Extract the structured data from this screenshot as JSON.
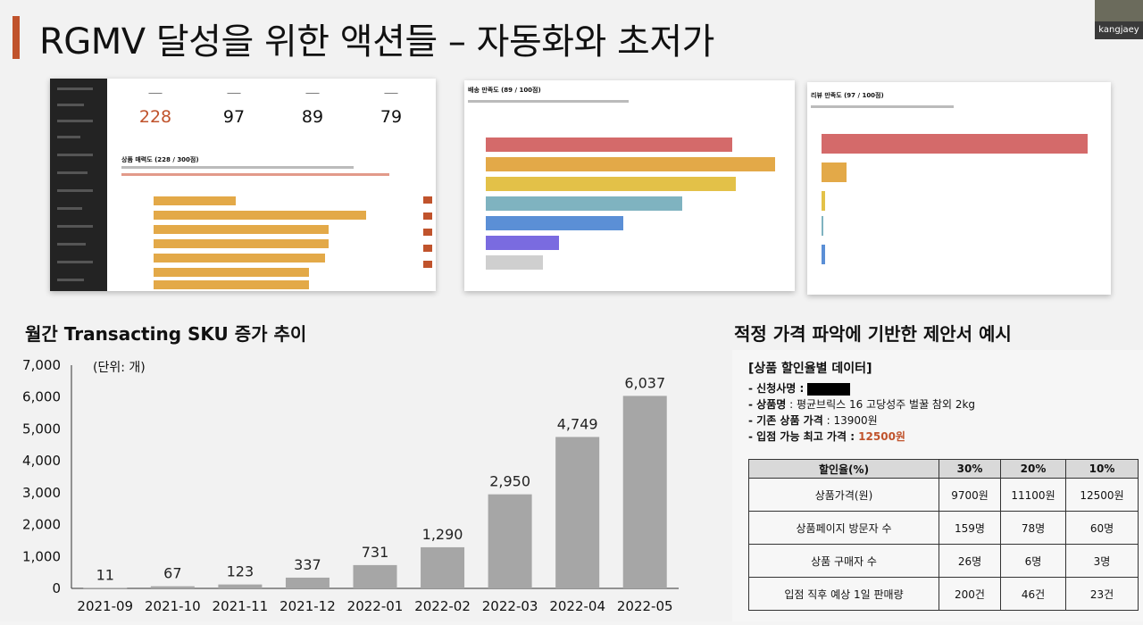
{
  "slide_title": "RGMV 달성을 위한 액션들 – 자동화와 초저가",
  "webcam_label": "kangjaey",
  "shots": {
    "kpis": [
      {
        "value": "228"
      },
      {
        "value": "97"
      },
      {
        "value": "89"
      },
      {
        "value": "79"
      }
    ],
    "s1_heading": "상품 매력도 (228 / 300점)",
    "s2_heading": "배송 만족도 (89 / 100점)",
    "s3_heading": "리뷰 만족도 (97 / 100점)",
    "accent_color": "#d9544f"
  },
  "left_section_title": "월간 Transacting SKU 증가 추이",
  "right_section_title": "적정 가격 파악에 기반한 제안서 예시",
  "chart_data": {
    "type": "bar",
    "unit_note": "(단위: 개)",
    "categories": [
      "2021-09",
      "2021-10",
      "2021-11",
      "2021-12",
      "2022-01",
      "2022-02",
      "2022-03",
      "2022-04",
      "2022-05"
    ],
    "values": [
      11,
      67,
      123,
      337,
      731,
      1290,
      2950,
      4749,
      6037
    ],
    "value_labels": [
      "11",
      "67",
      "123",
      "337",
      "731",
      "1,290",
      "2,950",
      "4,749",
      "6,037"
    ],
    "ylim": [
      0,
      7000
    ],
    "yticks": [
      "0",
      "1,000",
      "2,000",
      "3,000",
      "4,000",
      "5,000",
      "6,000",
      "7,000"
    ],
    "bar_color": "#a6a6a6",
    "grid": false
  },
  "proposal": {
    "header": "[상품 할인율별 데이터]",
    "applicant_label": "- 신청사명 : ",
    "product_label": "- 상품명",
    "product_value": " : 평균브릭스 16 고당성주 벌꿀 참외 2kg",
    "base_price_label": "- 기존 상품 가격",
    "base_price_value": " : 13900원",
    "max_price_label": "- 입점 가능 최고 가격 : ",
    "max_price_value": "12500원",
    "table": {
      "headers": [
        "할인율(%)",
        "30%",
        "20%",
        "10%"
      ],
      "rows": [
        [
          "상품가격(원)",
          "9700원",
          "11100원",
          "12500원"
        ],
        [
          "상품페이지 방문자 수",
          "159명",
          "78명",
          "60명"
        ],
        [
          "상품 구매자 수",
          "26명",
          "6명",
          "3명"
        ],
        [
          "입점 직후 예상 1일 판매량",
          "200건",
          "46건",
          "23건"
        ]
      ]
    }
  }
}
